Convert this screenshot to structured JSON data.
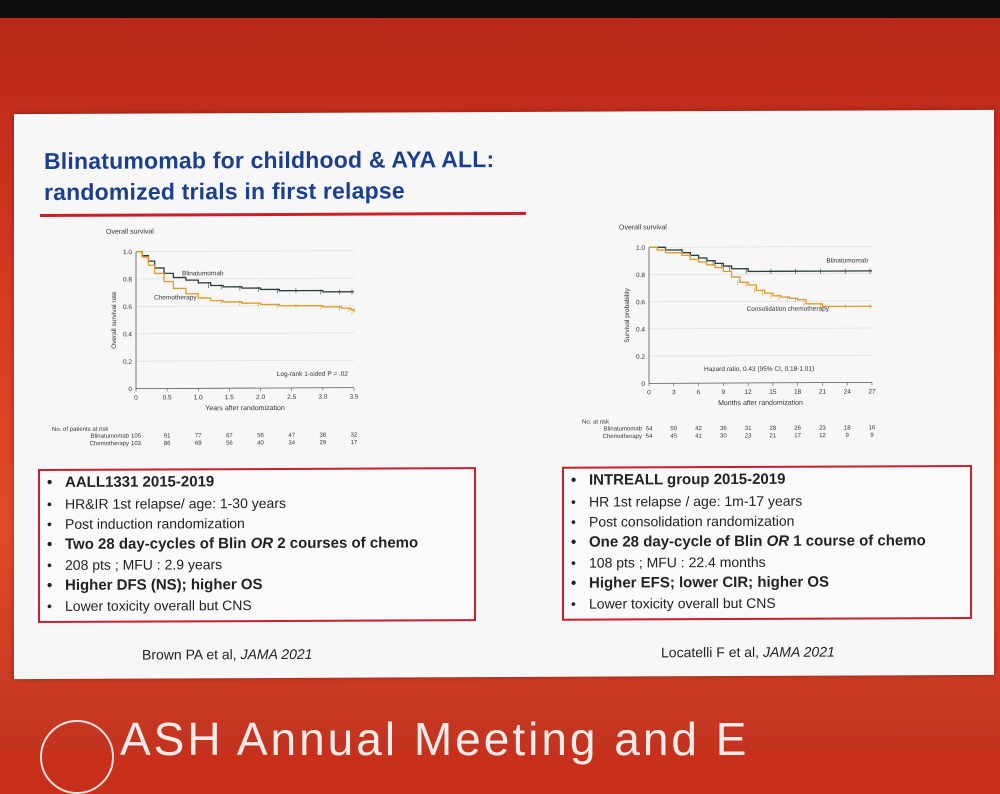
{
  "slide": {
    "title_line1": "Blinatumomab for childhood & AYA ALL:",
    "title_line2": "randomized trials in first relapse"
  },
  "colors": {
    "title": "#1a3f8f",
    "accent_red": "#c8202a",
    "blin_line": "#2e3b3f",
    "chemo_line": "#e09a2a"
  },
  "chart_data": [
    {
      "type": "line",
      "title": "Overall survival",
      "xlabel": "Years after randomization",
      "ylabel": "Overall survival rate",
      "xlim": [
        0,
        3.5
      ],
      "ylim": [
        0,
        1.0
      ],
      "x_ticks": [
        "0",
        "0.5",
        "1.0",
        "1.5",
        "2.0",
        "2.5",
        "3.0",
        "3.5"
      ],
      "y_ticks": [
        "0",
        "0.2",
        "0.4",
        "0.6",
        "0.8",
        "1.0"
      ],
      "series": [
        {
          "name": "Blinatumomab",
          "x": [
            0,
            0.1,
            0.2,
            0.3,
            0.45,
            0.6,
            0.8,
            1.0,
            1.2,
            1.4,
            1.7,
            2.0,
            2.3,
            2.6,
            3.0,
            3.3,
            3.5
          ],
          "y": [
            1.0,
            0.97,
            0.93,
            0.88,
            0.84,
            0.81,
            0.79,
            0.77,
            0.75,
            0.74,
            0.73,
            0.72,
            0.71,
            0.71,
            0.7,
            0.7,
            0.7
          ]
        },
        {
          "name": "Chemotherapy",
          "x": [
            0,
            0.1,
            0.2,
            0.3,
            0.45,
            0.6,
            0.8,
            1.0,
            1.2,
            1.4,
            1.7,
            2.0,
            2.3,
            2.6,
            3.0,
            3.3,
            3.45,
            3.5
          ],
          "y": [
            1.0,
            0.96,
            0.9,
            0.84,
            0.78,
            0.73,
            0.69,
            0.66,
            0.64,
            0.63,
            0.62,
            0.61,
            0.6,
            0.6,
            0.59,
            0.58,
            0.57,
            0.55
          ]
        }
      ],
      "annotations": [
        "Log-rank 1-sided P = .02"
      ],
      "risk_table": {
        "header": "No. of patients at risk",
        "rows": [
          {
            "label": "Blinatumomab",
            "values": [
              "105",
              "91",
              "77",
              "67",
              "56",
              "47",
              "38",
              "32"
            ]
          },
          {
            "label": "Chemotherapy",
            "values": [
              "103",
              "86",
              "69",
              "56",
              "40",
              "34",
              "29",
              "17"
            ]
          }
        ]
      }
    },
    {
      "type": "line",
      "title": "Overall survival",
      "xlabel": "Months after randomization",
      "ylabel": "Survival probability",
      "xlim": [
        0,
        27
      ],
      "ylim": [
        0,
        1.0
      ],
      "x_ticks": [
        "0",
        "3",
        "6",
        "9",
        "12",
        "15",
        "18",
        "21",
        "24",
        "27"
      ],
      "y_ticks": [
        "0",
        "0.2",
        "0.4",
        "0.6",
        "0.8",
        "1.0"
      ],
      "series": [
        {
          "name": "Blinatumomab",
          "x": [
            0,
            1,
            2,
            3,
            4,
            5,
            6,
            7,
            8,
            9,
            10,
            12,
            15,
            18,
            21,
            24,
            27
          ],
          "y": [
            1.0,
            1.0,
            0.98,
            0.98,
            0.96,
            0.94,
            0.92,
            0.9,
            0.88,
            0.86,
            0.84,
            0.82,
            0.82,
            0.82,
            0.82,
            0.82,
            0.82
          ]
        },
        {
          "name": "Consolidation chemotherapy",
          "x": [
            0,
            1,
            2,
            3,
            4,
            5,
            6,
            7,
            8,
            9,
            10,
            11,
            12,
            13,
            14,
            15,
            16,
            17,
            18,
            19,
            21,
            24,
            27
          ],
          "y": [
            1.0,
            0.98,
            0.96,
            0.96,
            0.94,
            0.91,
            0.89,
            0.87,
            0.85,
            0.82,
            0.78,
            0.74,
            0.72,
            0.68,
            0.66,
            0.64,
            0.63,
            0.62,
            0.61,
            0.58,
            0.56,
            0.56,
            0.56
          ]
        }
      ],
      "annotations": [
        "Hazard ratio, 0.43 (95% CI, 0.18-1.01)"
      ],
      "risk_table": {
        "header": "No. at risk",
        "rows": [
          {
            "label": "Blinatumomab",
            "values": [
              "54",
              "50",
              "42",
              "36",
              "31",
              "28",
              "26",
              "23",
              "18",
              "16"
            ]
          },
          {
            "label": "Chemotherapy",
            "values": [
              "54",
              "45",
              "41",
              "30",
              "23",
              "21",
              "17",
              "12",
              "9",
              "9"
            ]
          }
        ]
      }
    }
  ],
  "left_box": {
    "items": [
      {
        "head": "AALL1331",
        "text": " 2015-2019"
      },
      {
        "text": "HR&IR 1st relapse/ age: 1-30 years"
      },
      {
        "text": "Post induction randomization"
      },
      {
        "pre": "Two 28 day-cycles of Blin ",
        "it": "OR",
        "post": " 2 courses of chemo"
      },
      {
        "text": "208 pts ; MFU : 2.9 years"
      },
      {
        "text": "Higher DFS (NS); higher OS"
      },
      {
        "text": "Lower toxicity overall but CNS"
      }
    ]
  },
  "right_box": {
    "items": [
      {
        "head": "INTREALL group",
        "text": " 2015-2019"
      },
      {
        "text": "HR 1st relapse / age: 1m-17 years"
      },
      {
        "text": "Post consolidation randomization"
      },
      {
        "pre": "One 28 day-cycle of Blin ",
        "it": "OR",
        "post": " 1 course of chemo"
      },
      {
        "text": "108 pts ; MFU : 22.4 months"
      },
      {
        "text": "Higher EFS; lower CIR; higher OS"
      },
      {
        "text": "Lower toxicity overall but CNS"
      }
    ]
  },
  "citations": {
    "left_author": "Brown PA et al, ",
    "left_journal": "JAMA 2021",
    "right_author": "Locatelli F et al, ",
    "right_journal": "JAMA 2021"
  },
  "bottom_text": "ASH Annual Meeting and E"
}
